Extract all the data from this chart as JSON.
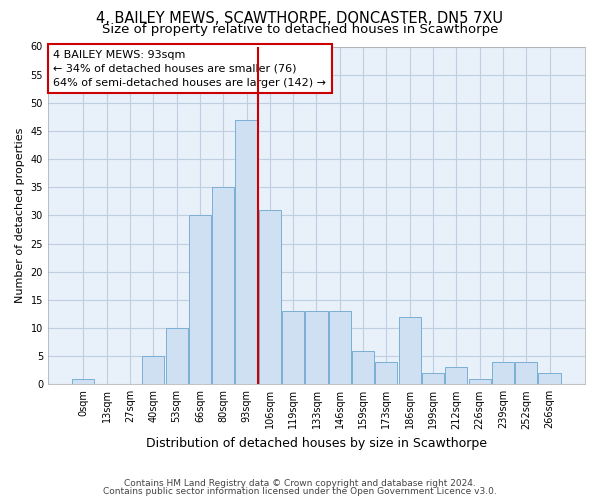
{
  "title1": "4, BAILEY MEWS, SCAWTHORPE, DONCASTER, DN5 7XU",
  "title2": "Size of property relative to detached houses in Scawthorpe",
  "xlabel": "Distribution of detached houses by size in Scawthorpe",
  "ylabel": "Number of detached properties",
  "bar_labels": [
    "0sqm",
    "13sqm",
    "27sqm",
    "40sqm",
    "53sqm",
    "66sqm",
    "80sqm",
    "93sqm",
    "106sqm",
    "119sqm",
    "133sqm",
    "146sqm",
    "159sqm",
    "173sqm",
    "186sqm",
    "199sqm",
    "212sqm",
    "226sqm",
    "239sqm",
    "252sqm",
    "266sqm"
  ],
  "bar_values": [
    1,
    0,
    0,
    5,
    10,
    30,
    35,
    47,
    31,
    13,
    13,
    13,
    6,
    4,
    12,
    2,
    3,
    1,
    4,
    4,
    2
  ],
  "bar_color": "#cfe0f2",
  "bar_edge_color": "#7aafd4",
  "vline_x": 7.5,
  "vline_color": "#cc0000",
  "annotation_text": "4 BAILEY MEWS: 93sqm\n← 34% of detached houses are smaller (76)\n64% of semi-detached houses are larger (142) →",
  "annotation_box_edge": "#cc0000",
  "ylim": [
    0,
    60
  ],
  "yticks": [
    0,
    5,
    10,
    15,
    20,
    25,
    30,
    35,
    40,
    45,
    50,
    55,
    60
  ],
  "grid_color": "#c0cfe0",
  "background_color": "#e8f0fa",
  "footer_line1": "Contains HM Land Registry data © Crown copyright and database right 2024.",
  "footer_line2": "Contains public sector information licensed under the Open Government Licence v3.0.",
  "title1_fontsize": 10.5,
  "title2_fontsize": 9.5,
  "xlabel_fontsize": 9,
  "ylabel_fontsize": 8,
  "tick_fontsize": 7,
  "annotation_fontsize": 8,
  "footer_fontsize": 6.5
}
